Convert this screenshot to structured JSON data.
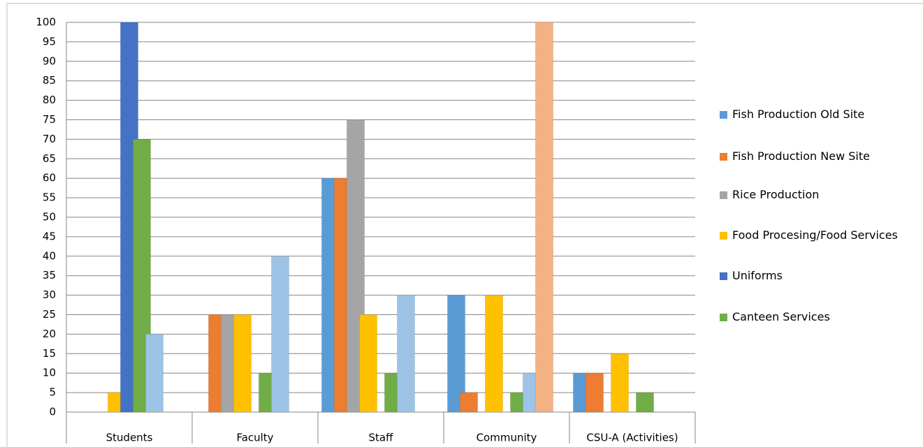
{
  "chart_data": {
    "type": "bar",
    "categories": [
      "Students",
      "Faculty",
      "Staff",
      "Community",
      "CSU-A (Activities)"
    ],
    "series": [
      {
        "name": "Fish Production Old Site",
        "color": "#5b9bd5",
        "values": [
          0,
          0,
          60,
          30,
          10
        ]
      },
      {
        "name": "Fish Production New Site",
        "color": "#ed7d31",
        "values": [
          0,
          25,
          60,
          5,
          10
        ]
      },
      {
        "name": "Rice Production",
        "color": "#a5a5a5",
        "values": [
          0,
          25,
          75,
          0,
          0
        ]
      },
      {
        "name": "Food Procesing/Food Services",
        "color": "#ffc000",
        "values": [
          5,
          25,
          25,
          30,
          15
        ]
      },
      {
        "name": "Uniforms",
        "color": "#4472c4",
        "values": [
          100,
          0,
          0,
          0,
          0
        ]
      },
      {
        "name": "Canteen Services",
        "color": "#70ad47",
        "values": [
          70,
          10,
          10,
          5,
          5
        ]
      },
      {
        "color": "#9dc3e6",
        "values": [
          20,
          40,
          30,
          10,
          0
        ]
      },
      {
        "color": "#f4b183",
        "values": [
          0,
          0,
          0,
          100,
          0
        ]
      }
    ],
    "ylim": [
      0,
      100
    ],
    "yticks": [
      0,
      5,
      10,
      15,
      20,
      25,
      30,
      35,
      40,
      45,
      50,
      55,
      60,
      65,
      70,
      75,
      80,
      85,
      90,
      95,
      100
    ],
    "grid": true
  }
}
